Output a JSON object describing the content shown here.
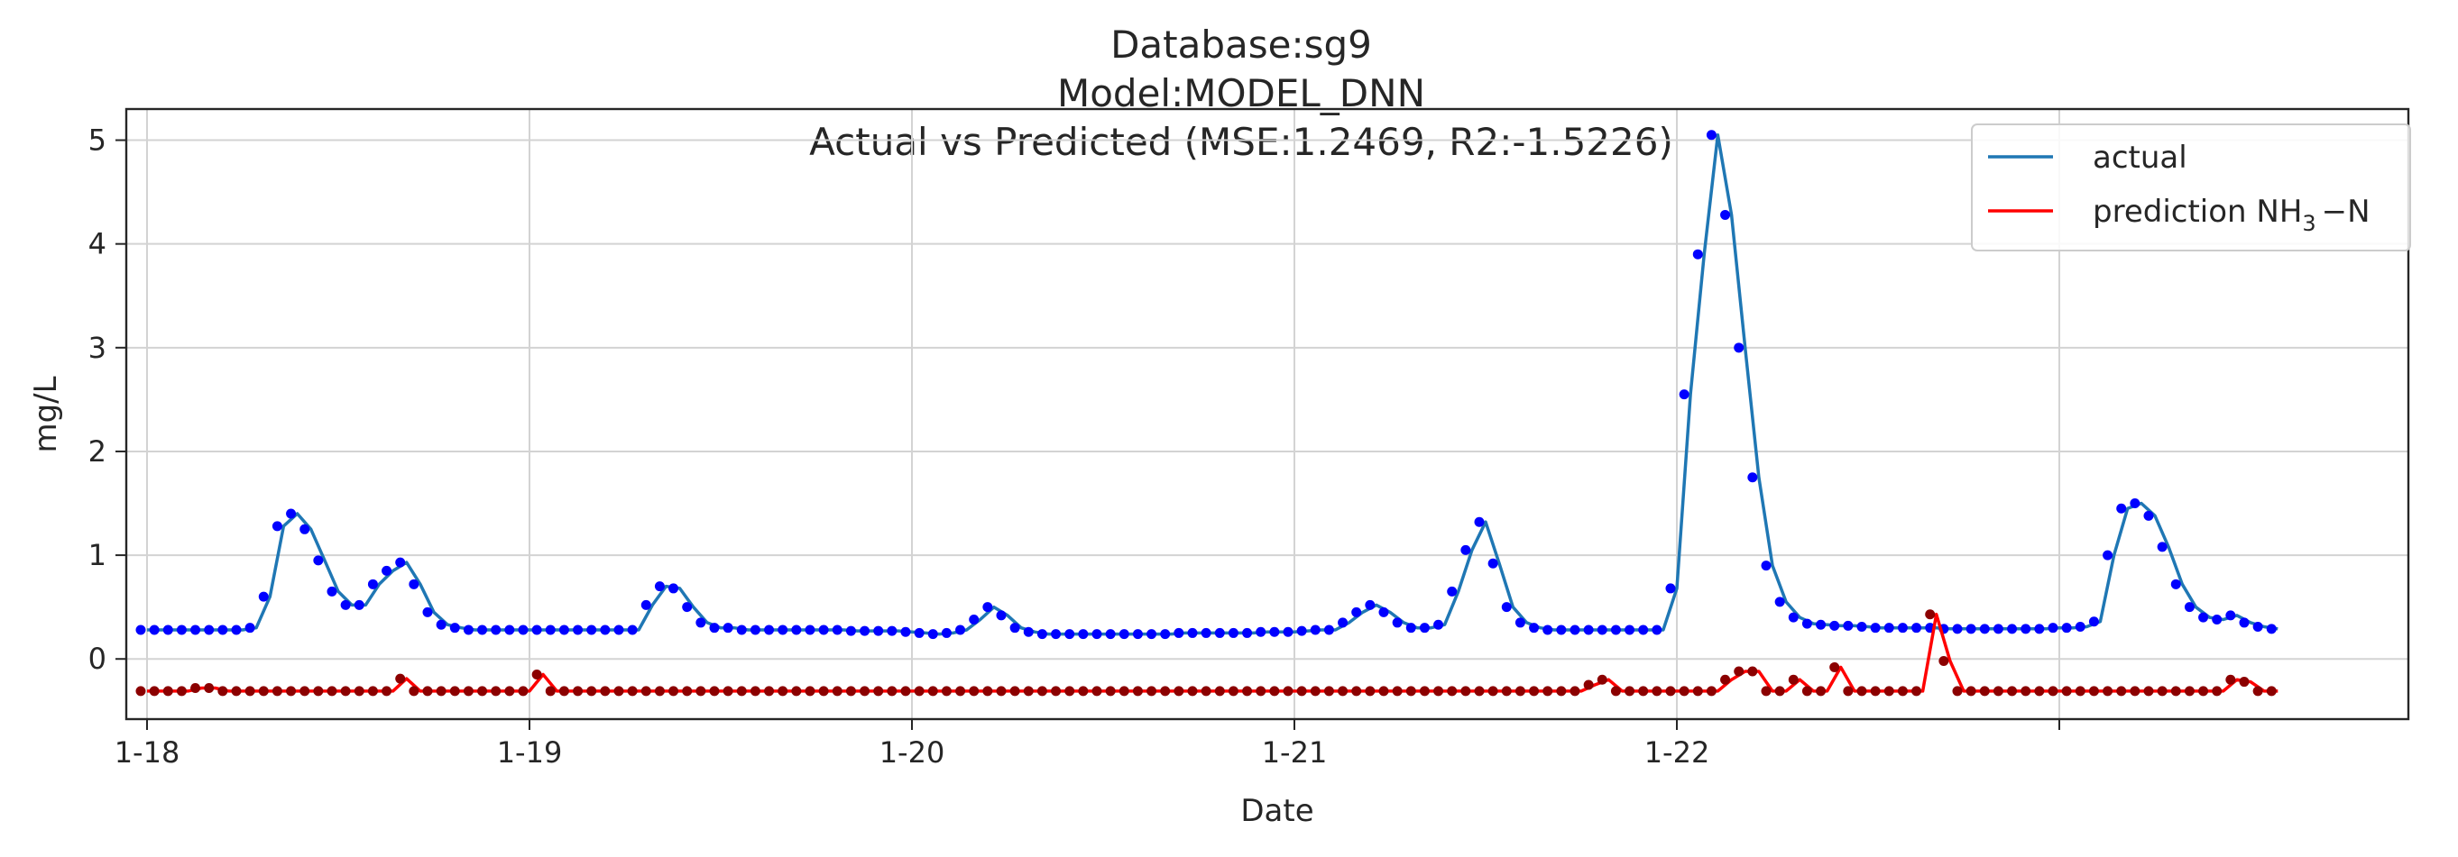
{
  "chart_data": {
    "type": "line",
    "title_lines": [
      "Database:sg9",
      "Model:MODEL_DNN",
      "Actual vs Predicted (MSE:1.2469, R2:-1.5226)"
    ],
    "xlabel": "Date",
    "ylabel": "mg/L",
    "x_tick_labels": [
      "1-18",
      "1-19",
      "1-20",
      "1-21",
      "1-22",
      ""
    ],
    "y_ticks": [
      0,
      1,
      2,
      3,
      4,
      5
    ],
    "ylim": [
      -0.58,
      5.3
    ],
    "grid": true,
    "legend": {
      "position": "top-right",
      "entries": [
        {
          "label": "actual",
          "color": "#1f77b4"
        },
        {
          "label_main": "prediction NH",
          "label_sub": "3",
          "label_tail": "−N",
          "color": "#ff0000"
        }
      ]
    },
    "colors": {
      "actual_line": "#1f77b4",
      "actual_points": "#0000ff",
      "pred_line": "#ff0000",
      "pred_points": "#8b0000",
      "grid": "#d3d3d3",
      "axis": "#262626"
    },
    "series": [
      {
        "key": "actual",
        "values": [
          0.28,
          0.28,
          0.28,
          0.28,
          0.28,
          0.28,
          0.28,
          0.28,
          0.3,
          0.6,
          1.28,
          1.4,
          1.25,
          0.95,
          0.65,
          0.52,
          0.52,
          0.72,
          0.85,
          0.93,
          0.72,
          0.45,
          0.33,
          0.3,
          0.28,
          0.28,
          0.28,
          0.28,
          0.28,
          0.28,
          0.28,
          0.28,
          0.28,
          0.28,
          0.28,
          0.28,
          0.28,
          0.52,
          0.7,
          0.68,
          0.5,
          0.35,
          0.3,
          0.3,
          0.28,
          0.28,
          0.28,
          0.28,
          0.28,
          0.28,
          0.28,
          0.28,
          0.27,
          0.27,
          0.27,
          0.27,
          0.26,
          0.25,
          0.24,
          0.25,
          0.28,
          0.38,
          0.5,
          0.42,
          0.3,
          0.26,
          0.24,
          0.24,
          0.24,
          0.24,
          0.24,
          0.24,
          0.24,
          0.24,
          0.24,
          0.24,
          0.25,
          0.25,
          0.25,
          0.25,
          0.25,
          0.25,
          0.26,
          0.26,
          0.26,
          0.27,
          0.28,
          0.28,
          0.35,
          0.45,
          0.52,
          0.45,
          0.35,
          0.3,
          0.3,
          0.33,
          0.65,
          1.05,
          1.32,
          0.92,
          0.5,
          0.35,
          0.3,
          0.28,
          0.28,
          0.28,
          0.28,
          0.28,
          0.28,
          0.28,
          0.28,
          0.28,
          0.68,
          2.55,
          3.9,
          5.05,
          4.28,
          3.0,
          1.75,
          0.9,
          0.55,
          0.4,
          0.34,
          0.33,
          0.32,
          0.32,
          0.31,
          0.3,
          0.3,
          0.3,
          0.3,
          0.3,
          0.29,
          0.29,
          0.29,
          0.29,
          0.29,
          0.29,
          0.29,
          0.29,
          0.3,
          0.3,
          0.31,
          0.36,
          1.0,
          1.45,
          1.5,
          1.38,
          1.08,
          0.72,
          0.5,
          0.4,
          0.38,
          0.42,
          0.35,
          0.31,
          0.29
        ]
      },
      {
        "key": "prediction",
        "values": [
          -0.31,
          -0.31,
          -0.31,
          -0.31,
          -0.28,
          -0.28,
          -0.31,
          -0.31,
          -0.31,
          -0.31,
          -0.31,
          -0.31,
          -0.31,
          -0.31,
          -0.31,
          -0.31,
          -0.31,
          -0.31,
          -0.31,
          -0.19,
          -0.31,
          -0.31,
          -0.31,
          -0.31,
          -0.31,
          -0.31,
          -0.31,
          -0.31,
          -0.31,
          -0.15,
          -0.31,
          -0.31,
          -0.31,
          -0.31,
          -0.31,
          -0.31,
          -0.31,
          -0.31,
          -0.31,
          -0.31,
          -0.31,
          -0.31,
          -0.31,
          -0.31,
          -0.31,
          -0.31,
          -0.31,
          -0.31,
          -0.31,
          -0.31,
          -0.31,
          -0.31,
          -0.31,
          -0.31,
          -0.31,
          -0.31,
          -0.31,
          -0.31,
          -0.31,
          -0.31,
          -0.31,
          -0.31,
          -0.31,
          -0.31,
          -0.31,
          -0.31,
          -0.31,
          -0.31,
          -0.31,
          -0.31,
          -0.31,
          -0.31,
          -0.31,
          -0.31,
          -0.31,
          -0.31,
          -0.31,
          -0.31,
          -0.31,
          -0.31,
          -0.31,
          -0.31,
          -0.31,
          -0.31,
          -0.31,
          -0.31,
          -0.31,
          -0.31,
          -0.31,
          -0.31,
          -0.31,
          -0.31,
          -0.31,
          -0.31,
          -0.31,
          -0.31,
          -0.31,
          -0.31,
          -0.31,
          -0.31,
          -0.31,
          -0.31,
          -0.31,
          -0.31,
          -0.31,
          -0.31,
          -0.25,
          -0.2,
          -0.31,
          -0.31,
          -0.31,
          -0.31,
          -0.31,
          -0.31,
          -0.31,
          -0.31,
          -0.2,
          -0.12,
          -0.12,
          -0.31,
          -0.31,
          -0.2,
          -0.31,
          -0.31,
          -0.08,
          -0.31,
          -0.31,
          -0.31,
          -0.31,
          -0.31,
          -0.31,
          0.43,
          -0.02,
          -0.31,
          -0.31,
          -0.31,
          -0.31,
          -0.31,
          -0.31,
          -0.31,
          -0.31,
          -0.31,
          -0.31,
          -0.31,
          -0.31,
          -0.31,
          -0.31,
          -0.31,
          -0.31,
          -0.31,
          -0.31,
          -0.31,
          -0.31,
          -0.2,
          -0.22,
          -0.31,
          -0.31
        ]
      }
    ]
  }
}
